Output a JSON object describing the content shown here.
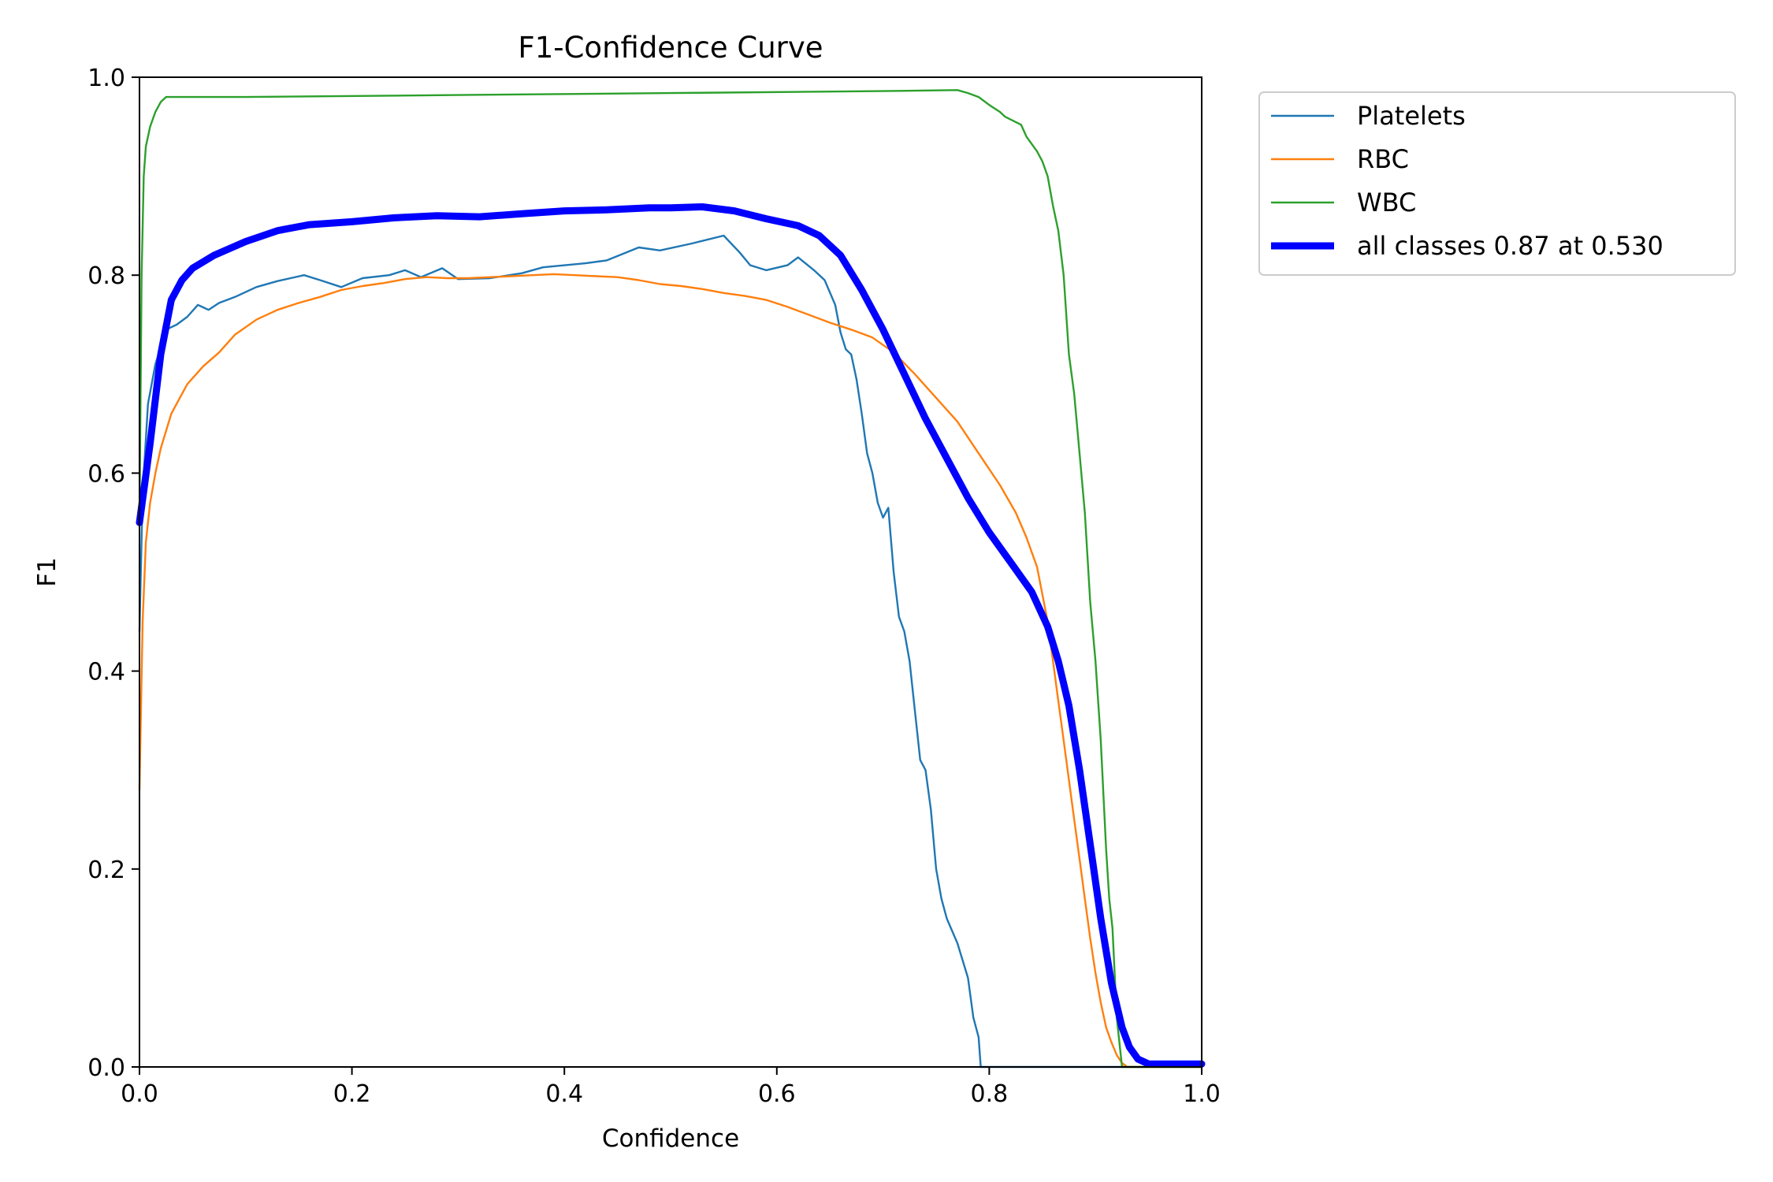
{
  "chart_data": {
    "type": "line",
    "title": "F1-Confidence Curve",
    "xlabel": "Confidence",
    "ylabel": "F1",
    "xlim": [
      0,
      1
    ],
    "ylim": [
      0,
      1
    ],
    "x_ticks": [
      "0.0",
      "0.2",
      "0.4",
      "0.6",
      "0.8",
      "1.0"
    ],
    "y_ticks": [
      "0.0",
      "0.2",
      "0.4",
      "0.6",
      "0.8",
      "1.0"
    ],
    "grid": false,
    "legend_position": "outside-top-right",
    "series": [
      {
        "name": "Platelets",
        "color": "#1f77b4",
        "points": [
          [
            0.0,
            0.44
          ],
          [
            0.003,
            0.58
          ],
          [
            0.008,
            0.67
          ],
          [
            0.015,
            0.71
          ],
          [
            0.025,
            0.745
          ],
          [
            0.035,
            0.75
          ],
          [
            0.045,
            0.758
          ],
          [
            0.055,
            0.77
          ],
          [
            0.065,
            0.765
          ],
          [
            0.075,
            0.772
          ],
          [
            0.09,
            0.778
          ],
          [
            0.11,
            0.788
          ],
          [
            0.13,
            0.794
          ],
          [
            0.155,
            0.8
          ],
          [
            0.17,
            0.795
          ],
          [
            0.19,
            0.788
          ],
          [
            0.21,
            0.797
          ],
          [
            0.235,
            0.8
          ],
          [
            0.25,
            0.805
          ],
          [
            0.265,
            0.798
          ],
          [
            0.285,
            0.807
          ],
          [
            0.3,
            0.796
          ],
          [
            0.33,
            0.797
          ],
          [
            0.36,
            0.802
          ],
          [
            0.38,
            0.808
          ],
          [
            0.42,
            0.812
          ],
          [
            0.44,
            0.815
          ],
          [
            0.47,
            0.828
          ],
          [
            0.49,
            0.825
          ],
          [
            0.52,
            0.832
          ],
          [
            0.55,
            0.84
          ],
          [
            0.565,
            0.823
          ],
          [
            0.575,
            0.81
          ],
          [
            0.59,
            0.805
          ],
          [
            0.61,
            0.81
          ],
          [
            0.62,
            0.818
          ],
          [
            0.635,
            0.805
          ],
          [
            0.645,
            0.795
          ],
          [
            0.655,
            0.77
          ],
          [
            0.66,
            0.742
          ],
          [
            0.665,
            0.725
          ],
          [
            0.67,
            0.72
          ],
          [
            0.675,
            0.695
          ],
          [
            0.68,
            0.66
          ],
          [
            0.685,
            0.62
          ],
          [
            0.69,
            0.6
          ],
          [
            0.695,
            0.57
          ],
          [
            0.7,
            0.555
          ],
          [
            0.705,
            0.565
          ],
          [
            0.71,
            0.5
          ],
          [
            0.715,
            0.455
          ],
          [
            0.72,
            0.44
          ],
          [
            0.725,
            0.41
          ],
          [
            0.73,
            0.36
          ],
          [
            0.735,
            0.31
          ],
          [
            0.74,
            0.3
          ],
          [
            0.745,
            0.26
          ],
          [
            0.75,
            0.2
          ],
          [
            0.755,
            0.17
          ],
          [
            0.76,
            0.15
          ],
          [
            0.77,
            0.125
          ],
          [
            0.78,
            0.09
          ],
          [
            0.785,
            0.05
          ],
          [
            0.79,
            0.03
          ],
          [
            0.792,
            0.0
          ],
          [
            1.0,
            0.0
          ]
        ]
      },
      {
        "name": "RBC",
        "color": "#ff7f0e",
        "points": [
          [
            0.0,
            0.28
          ],
          [
            0.003,
            0.45
          ],
          [
            0.006,
            0.53
          ],
          [
            0.01,
            0.57
          ],
          [
            0.015,
            0.6
          ],
          [
            0.02,
            0.625
          ],
          [
            0.03,
            0.66
          ],
          [
            0.045,
            0.69
          ],
          [
            0.06,
            0.708
          ],
          [
            0.075,
            0.722
          ],
          [
            0.09,
            0.74
          ],
          [
            0.11,
            0.755
          ],
          [
            0.13,
            0.765
          ],
          [
            0.15,
            0.772
          ],
          [
            0.17,
            0.778
          ],
          [
            0.19,
            0.785
          ],
          [
            0.21,
            0.789
          ],
          [
            0.23,
            0.792
          ],
          [
            0.25,
            0.796
          ],
          [
            0.27,
            0.798
          ],
          [
            0.29,
            0.797
          ],
          [
            0.31,
            0.797
          ],
          [
            0.33,
            0.798
          ],
          [
            0.35,
            0.799
          ],
          [
            0.37,
            0.8
          ],
          [
            0.39,
            0.801
          ],
          [
            0.41,
            0.8
          ],
          [
            0.43,
            0.799
          ],
          [
            0.45,
            0.798
          ],
          [
            0.47,
            0.795
          ],
          [
            0.49,
            0.791
          ],
          [
            0.51,
            0.789
          ],
          [
            0.53,
            0.786
          ],
          [
            0.55,
            0.782
          ],
          [
            0.57,
            0.779
          ],
          [
            0.59,
            0.775
          ],
          [
            0.61,
            0.768
          ],
          [
            0.63,
            0.76
          ],
          [
            0.65,
            0.752
          ],
          [
            0.67,
            0.745
          ],
          [
            0.69,
            0.737
          ],
          [
            0.71,
            0.722
          ],
          [
            0.73,
            0.7
          ],
          [
            0.75,
            0.676
          ],
          [
            0.77,
            0.652
          ],
          [
            0.79,
            0.62
          ],
          [
            0.81,
            0.588
          ],
          [
            0.825,
            0.56
          ],
          [
            0.835,
            0.535
          ],
          [
            0.845,
            0.505
          ],
          [
            0.855,
            0.45
          ],
          [
            0.86,
            0.41
          ],
          [
            0.865,
            0.37
          ],
          [
            0.87,
            0.33
          ],
          [
            0.875,
            0.29
          ],
          [
            0.88,
            0.25
          ],
          [
            0.885,
            0.21
          ],
          [
            0.89,
            0.17
          ],
          [
            0.895,
            0.13
          ],
          [
            0.9,
            0.095
          ],
          [
            0.905,
            0.065
          ],
          [
            0.91,
            0.04
          ],
          [
            0.915,
            0.025
          ],
          [
            0.92,
            0.012
          ],
          [
            0.925,
            0.004
          ],
          [
            0.93,
            0.0
          ],
          [
            1.0,
            0.0
          ]
        ]
      },
      {
        "name": "WBC",
        "color": "#2ca02c",
        "points": [
          [
            0.0,
            0.55
          ],
          [
            0.002,
            0.8
          ],
          [
            0.004,
            0.9
          ],
          [
            0.006,
            0.93
          ],
          [
            0.01,
            0.95
          ],
          [
            0.015,
            0.965
          ],
          [
            0.02,
            0.975
          ],
          [
            0.025,
            0.98
          ],
          [
            0.1,
            0.98
          ],
          [
            0.3,
            0.982
          ],
          [
            0.5,
            0.984
          ],
          [
            0.7,
            0.986
          ],
          [
            0.77,
            0.987
          ],
          [
            0.78,
            0.984
          ],
          [
            0.79,
            0.98
          ],
          [
            0.8,
            0.972
          ],
          [
            0.81,
            0.965
          ],
          [
            0.815,
            0.96
          ],
          [
            0.83,
            0.952
          ],
          [
            0.835,
            0.94
          ],
          [
            0.845,
            0.925
          ],
          [
            0.85,
            0.915
          ],
          [
            0.855,
            0.9
          ],
          [
            0.86,
            0.87
          ],
          [
            0.865,
            0.845
          ],
          [
            0.87,
            0.8
          ],
          [
            0.875,
            0.72
          ],
          [
            0.88,
            0.68
          ],
          [
            0.885,
            0.62
          ],
          [
            0.89,
            0.56
          ],
          [
            0.895,
            0.47
          ],
          [
            0.9,
            0.41
          ],
          [
            0.905,
            0.33
          ],
          [
            0.91,
            0.22
          ],
          [
            0.913,
            0.17
          ],
          [
            0.916,
            0.14
          ],
          [
            0.92,
            0.05
          ],
          [
            0.923,
            0.02
          ],
          [
            0.925,
            0.0
          ],
          [
            1.0,
            0.0
          ]
        ]
      },
      {
        "name": "all classes 0.87 at 0.530",
        "color": "#0000ff",
        "points": [
          [
            0.0,
            0.55
          ],
          [
            0.01,
            0.63
          ],
          [
            0.02,
            0.72
          ],
          [
            0.03,
            0.775
          ],
          [
            0.04,
            0.795
          ],
          [
            0.05,
            0.807
          ],
          [
            0.07,
            0.82
          ],
          [
            0.1,
            0.834
          ],
          [
            0.13,
            0.845
          ],
          [
            0.16,
            0.851
          ],
          [
            0.2,
            0.854
          ],
          [
            0.24,
            0.858
          ],
          [
            0.28,
            0.86
          ],
          [
            0.32,
            0.859
          ],
          [
            0.36,
            0.862
          ],
          [
            0.4,
            0.865
          ],
          [
            0.44,
            0.866
          ],
          [
            0.48,
            0.868
          ],
          [
            0.5,
            0.868
          ],
          [
            0.53,
            0.869
          ],
          [
            0.56,
            0.865
          ],
          [
            0.59,
            0.857
          ],
          [
            0.62,
            0.85
          ],
          [
            0.64,
            0.84
          ],
          [
            0.66,
            0.82
          ],
          [
            0.68,
            0.785
          ],
          [
            0.7,
            0.745
          ],
          [
            0.72,
            0.7
          ],
          [
            0.74,
            0.655
          ],
          [
            0.76,
            0.615
          ],
          [
            0.78,
            0.575
          ],
          [
            0.8,
            0.54
          ],
          [
            0.82,
            0.51
          ],
          [
            0.84,
            0.48
          ],
          [
            0.855,
            0.445
          ],
          [
            0.865,
            0.41
          ],
          [
            0.875,
            0.365
          ],
          [
            0.885,
            0.3
          ],
          [
            0.895,
            0.225
          ],
          [
            0.905,
            0.15
          ],
          [
            0.915,
            0.085
          ],
          [
            0.925,
            0.04
          ],
          [
            0.932,
            0.02
          ],
          [
            0.94,
            0.008
          ],
          [
            0.95,
            0.003
          ],
          [
            1.0,
            0.003
          ]
        ]
      }
    ]
  }
}
